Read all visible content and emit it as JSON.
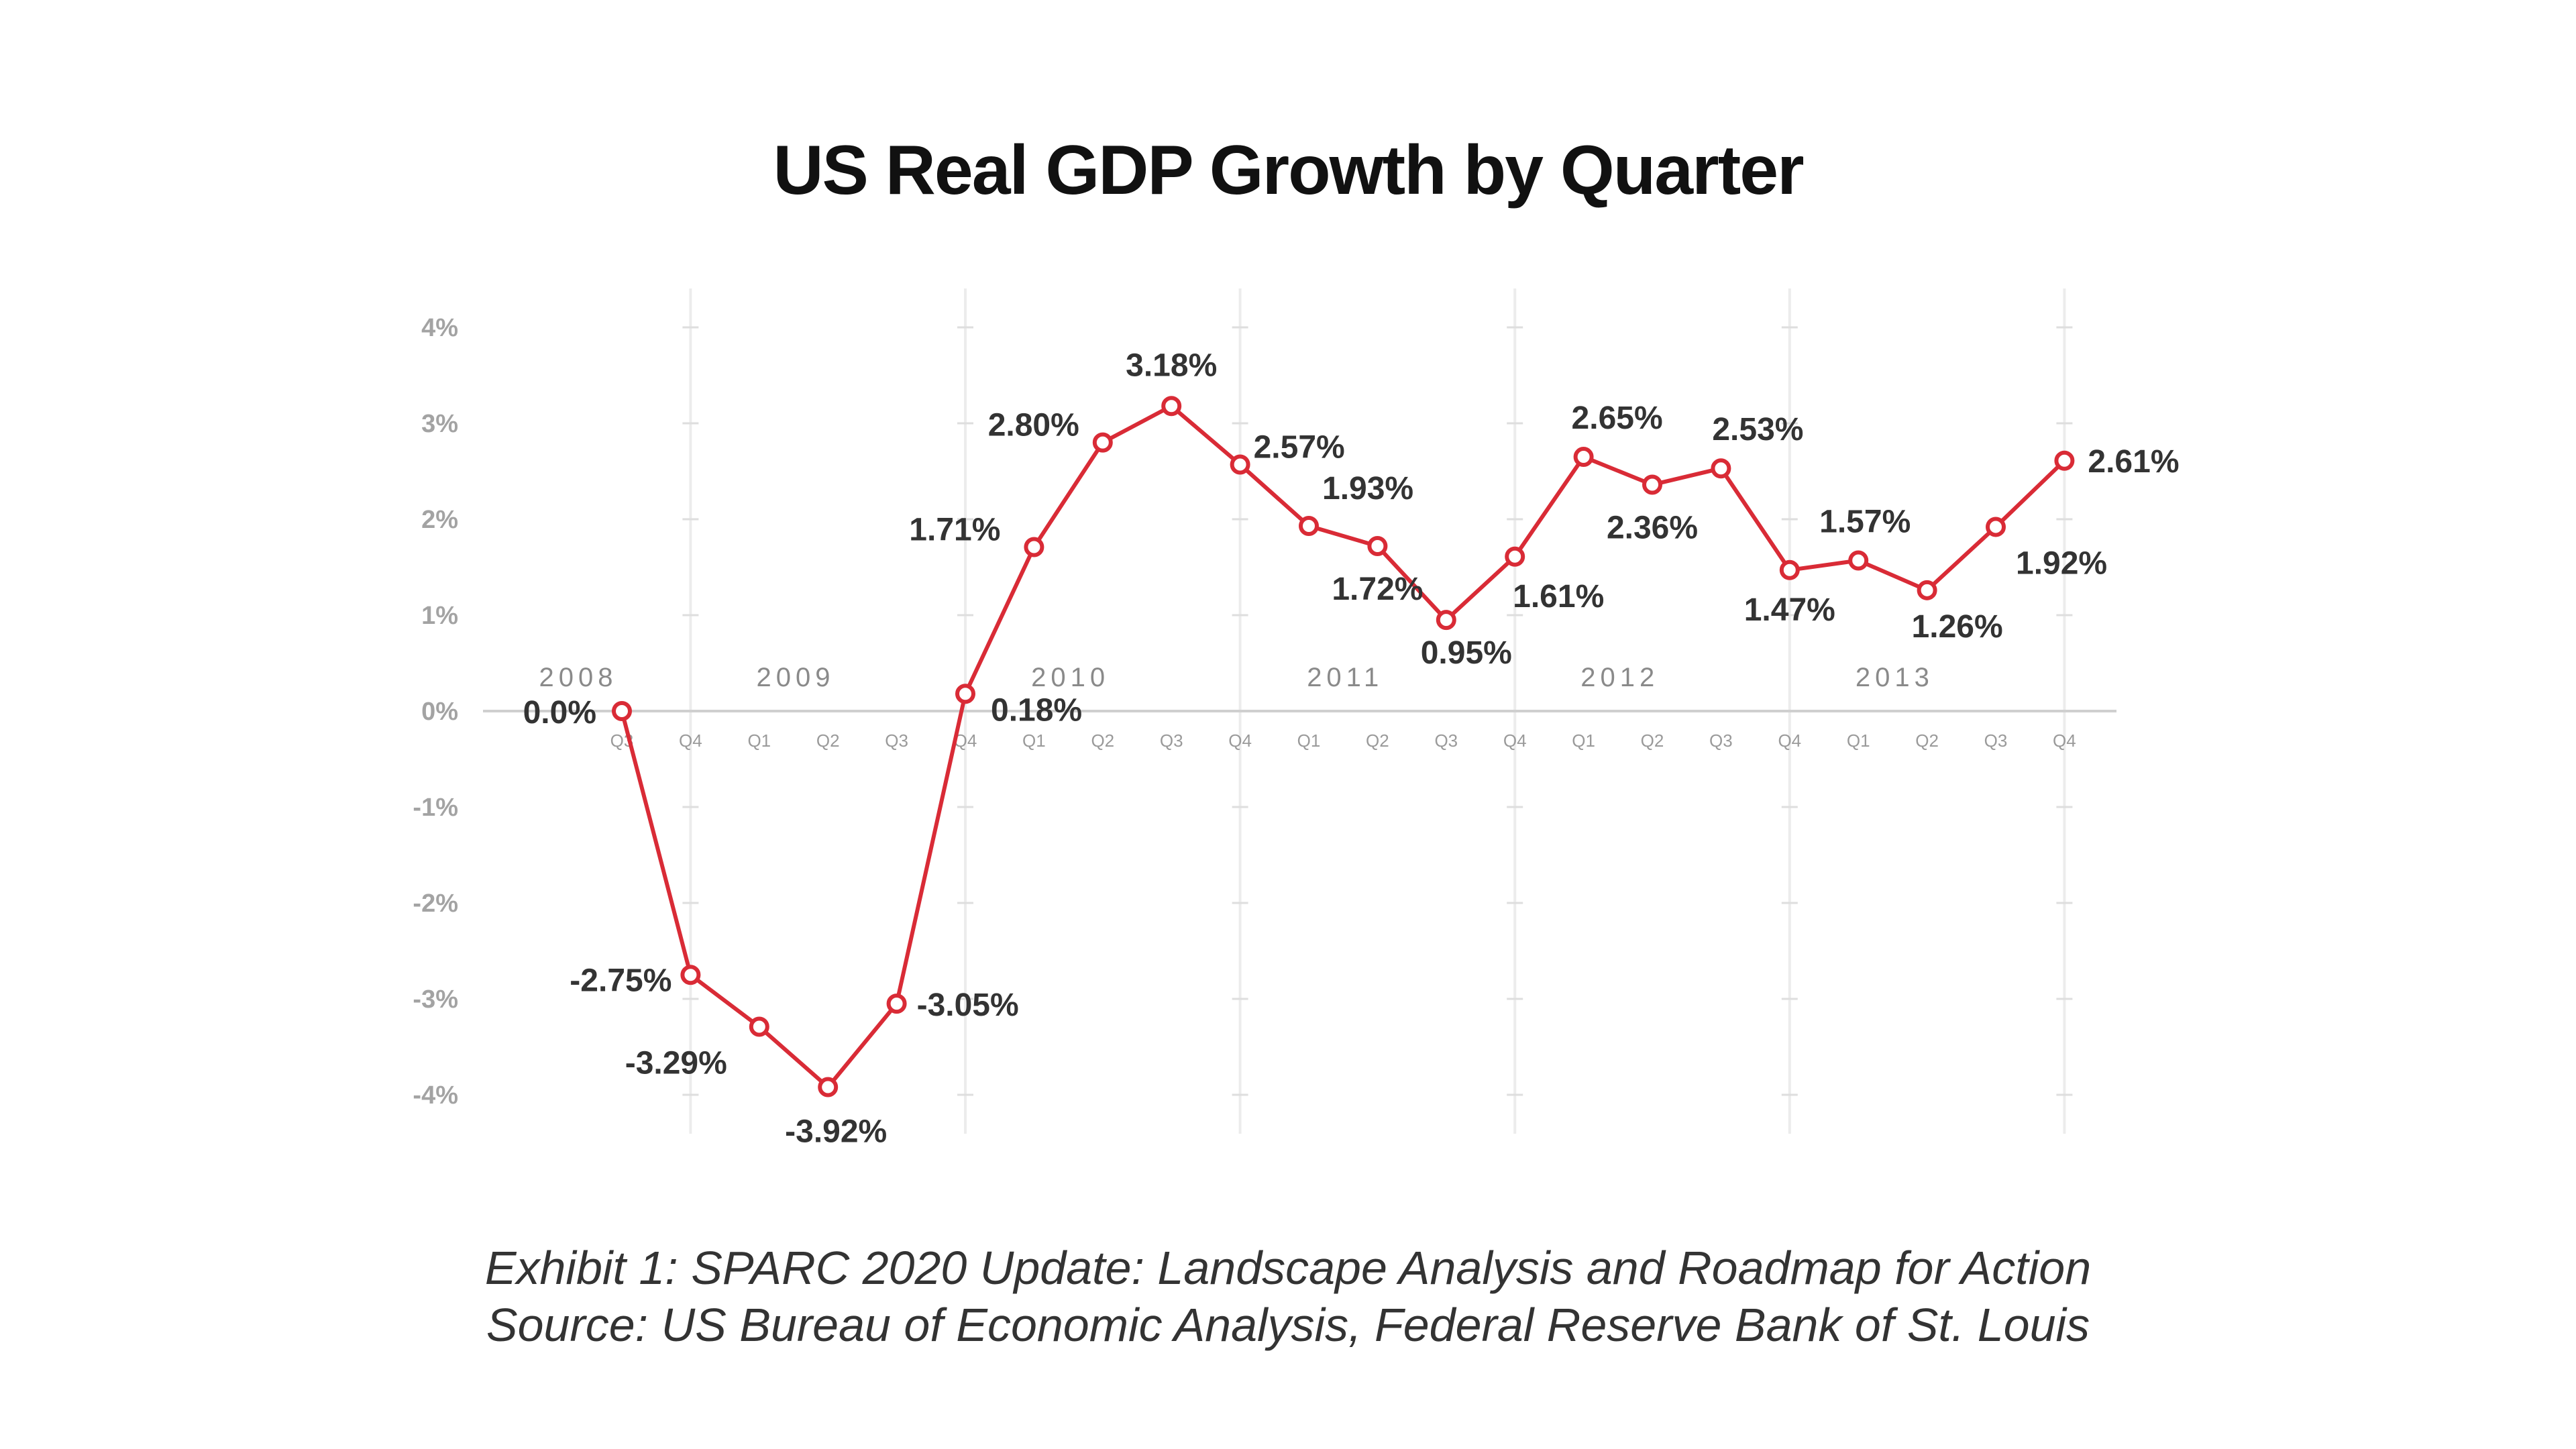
{
  "title": "US Real GDP Growth by Quarter",
  "caption": {
    "line1": "Exhibit 1: SPARC 2020 Update: Landscape Analysis and Roadmap for Action",
    "line2": "Source: US Bureau of Economic Analysis, Federal Reserve Bank of St. Louis"
  },
  "chart_data": {
    "type": "line",
    "title": "US Real GDP Growth by Quarter",
    "xlabel": "",
    "ylabel": "",
    "ylim": [
      -4,
      4
    ],
    "yticks": [
      "4%",
      "3%",
      "2%",
      "1%",
      "0%",
      "-1%",
      "-2%",
      "-3%",
      "-4%"
    ],
    "grid": true,
    "legend": "none",
    "line_color": "#d92b36",
    "x": [
      "Q3",
      "Q4",
      "Q1",
      "Q2",
      "Q3",
      "Q4",
      "Q1",
      "Q2",
      "Q3",
      "Q4",
      "Q1",
      "Q2",
      "Q3",
      "Q4",
      "Q1",
      "Q2",
      "Q3",
      "Q4",
      "Q1",
      "Q2",
      "Q3",
      "Q4"
    ],
    "years": [
      "2008",
      "2009",
      "2010",
      "2011",
      "2012",
      "2013"
    ],
    "values": [
      0.0,
      -2.75,
      -3.29,
      -3.92,
      -3.05,
      0.18,
      1.71,
      2.8,
      3.18,
      2.57,
      1.93,
      1.72,
      0.95,
      1.61,
      2.65,
      2.36,
      2.53,
      1.47,
      1.57,
      1.26,
      1.92,
      2.61
    ],
    "labels": [
      "0.0%",
      "-2.75%",
      "-3.29%",
      "-3.92%",
      "-3.05%",
      "0.18%",
      "1.71%",
      "2.80%",
      "3.18%",
      "2.57%",
      "1.93%",
      "1.72%",
      "0.95%",
      "1.61%",
      "2.65%",
      "2.36%",
      "2.53%",
      "1.47%",
      "1.57%",
      "1.26%",
      "1.92%",
      "2.61%"
    ]
  }
}
